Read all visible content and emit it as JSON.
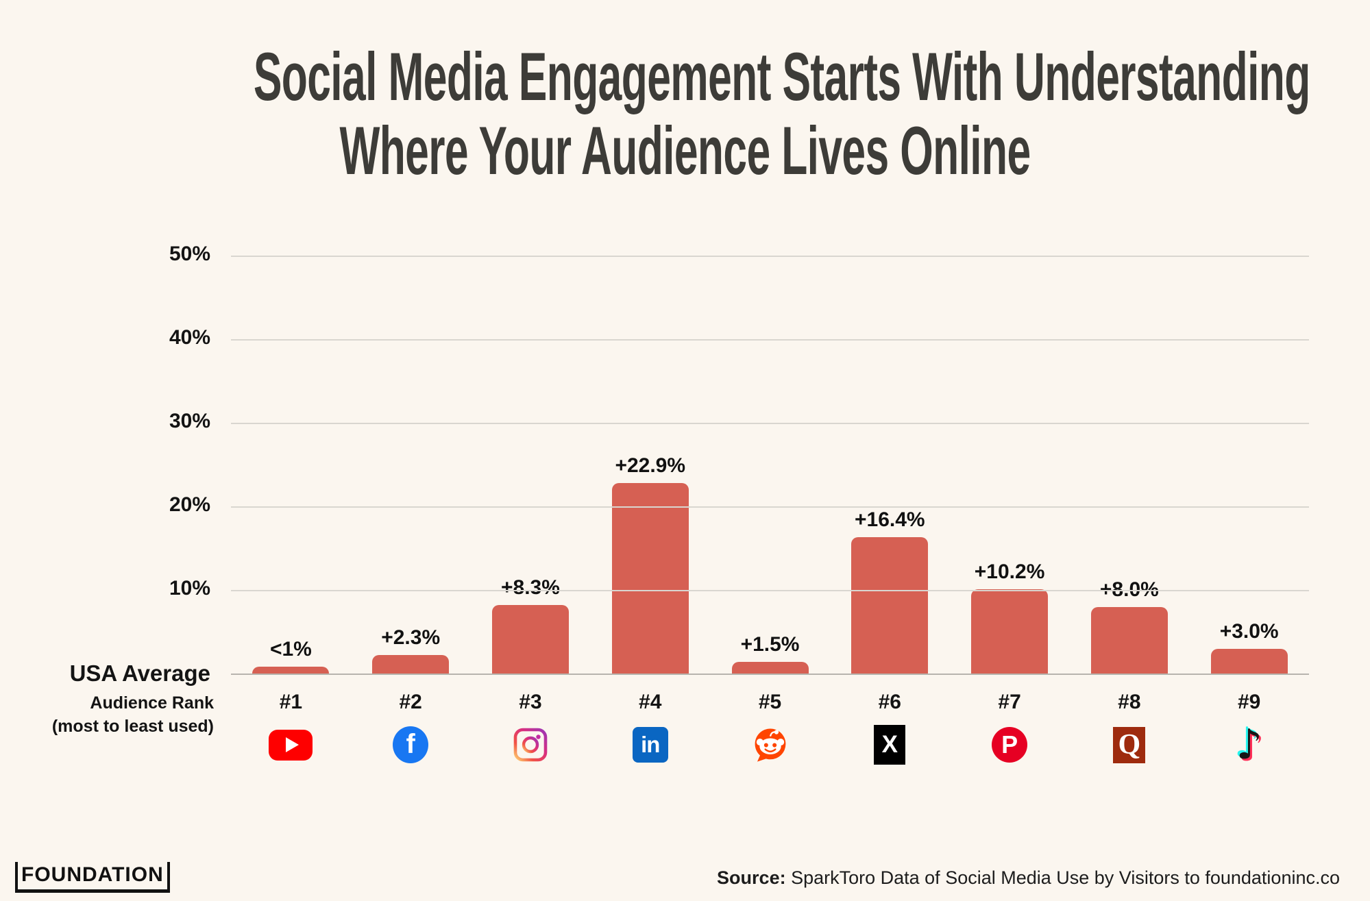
{
  "page": {
    "background": "#fbf6ef"
  },
  "title": {
    "line1": "Social Media Engagement Starts With Understanding",
    "line2": "Where Your Audience Lives Online",
    "color": "#3d3c38"
  },
  "y_axis": {
    "tick_labels": [
      "50%",
      "40%",
      "30%",
      "20%",
      "10%"
    ],
    "baseline_label": "USA Average"
  },
  "x_axis": {
    "label_line1": "Audience Rank",
    "label_line2": "(most to least used)"
  },
  "chart_data": {
    "type": "bar",
    "title": "Social Media Engagement Starts With Understanding Where Your Audience Lives Online",
    "xlabel": "Audience Rank (most to least used)",
    "ylabel": "",
    "ylim": [
      0,
      50
    ],
    "yticks": [
      10,
      20,
      30,
      40,
      50
    ],
    "grid": true,
    "baseline_label": "USA Average",
    "bar_color": "#d66053",
    "categories": [
      "#1",
      "#2",
      "#3",
      "#4",
      "#5",
      "#6",
      "#7",
      "#8",
      "#9"
    ],
    "values": [
      0.9,
      2.3,
      8.3,
      22.9,
      1.5,
      16.4,
      10.2,
      8.0,
      3.0
    ],
    "value_labels": [
      "<1%",
      "+2.3%",
      "+8.3%",
      "+22.9%",
      "+1.5%",
      "+16.4%",
      "+10.2%",
      "+8.0%",
      "+3.0%"
    ],
    "bars": [
      {
        "rank": "#1",
        "platform": "YouTube",
        "icon": "youtube-icon",
        "value": 0.9,
        "label": "<1%"
      },
      {
        "rank": "#2",
        "platform": "Facebook",
        "icon": "facebook-icon",
        "value": 2.3,
        "label": "+2.3%"
      },
      {
        "rank": "#3",
        "platform": "Instagram",
        "icon": "instagram-icon",
        "value": 8.3,
        "label": "+8.3%"
      },
      {
        "rank": "#4",
        "platform": "LinkedIn",
        "icon": "linkedin-icon",
        "value": 22.9,
        "label": "+22.9%"
      },
      {
        "rank": "#5",
        "platform": "Reddit",
        "icon": "reddit-icon",
        "value": 1.5,
        "label": "+1.5%"
      },
      {
        "rank": "#6",
        "platform": "X",
        "icon": "x-icon",
        "value": 16.4,
        "label": "+16.4%"
      },
      {
        "rank": "#7",
        "platform": "Pinterest",
        "icon": "pinterest-icon",
        "value": 10.2,
        "label": "+10.2%"
      },
      {
        "rank": "#8",
        "platform": "Quora",
        "icon": "quora-icon",
        "value": 8.0,
        "label": "+8.0%"
      },
      {
        "rank": "#9",
        "platform": "TikTok",
        "icon": "tiktok-icon",
        "value": 3.0,
        "label": "+3.0%"
      }
    ],
    "icon_colors": {
      "youtube": "#fe0000",
      "facebook": "#1877f2",
      "linkedin": "#0a66c2",
      "reddit": "#ff4500",
      "x": "#000000",
      "pinterest": "#e60023",
      "quora": "#9e2b0e",
      "tiktok_cyan": "#25f4ee",
      "tiktok_pink": "#fe2c55"
    }
  },
  "footer": {
    "brand": "FOUNDATION",
    "source_label": "Source:",
    "source_text": " SparkToro Data of Social Media Use by Visitors to foundationinc.co"
  }
}
